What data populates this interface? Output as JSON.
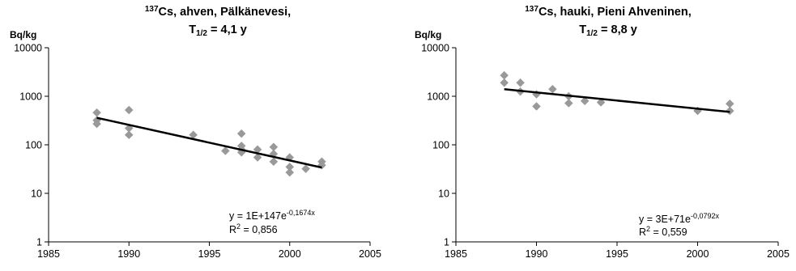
{
  "chart_data": [
    {
      "type": "scatter",
      "title_parts": {
        "sup": "137",
        "main": "Cs, ahven, Pälkänevesi,",
        "line2_pre": "T",
        "line2_sub": "1/2",
        "line2_post": " = 4,1 y"
      },
      "ylabel": "Bq/kg",
      "xlim": [
        1985,
        2005
      ],
      "ylim": [
        1,
        10000
      ],
      "y_scale": "log",
      "xticks": [
        "1985",
        "1990",
        "1995",
        "2000",
        "2005"
      ],
      "yticks": [
        "1",
        "10",
        "100",
        "1000",
        "10000"
      ],
      "marker_color": "#999999",
      "trend_color": "#000000",
      "series": [
        {
          "x": [
            1988,
            1988,
            1988,
            1990,
            1990,
            1990,
            1994,
            1996,
            1997,
            1997,
            1997,
            1997,
            1998,
            1998,
            1999,
            1999,
            1999,
            2000,
            2000,
            2000,
            2001,
            2002,
            2002
          ],
          "y": [
            460,
            320,
            270,
            520,
            220,
            160,
            160,
            75,
            170,
            95,
            80,
            70,
            80,
            55,
            90,
            65,
            45,
            55,
            35,
            27,
            32,
            45,
            38
          ]
        }
      ],
      "trend": {
        "x": [
          1988,
          2002
        ],
        "y": [
          360,
          34
        ]
      },
      "equation": {
        "main": "y = 1E+147e",
        "exp": "-0,1674x",
        "r2_pre": "R",
        "r2_sup": "2",
        "r2_post": " = 0,856"
      }
    },
    {
      "type": "scatter",
      "title_parts": {
        "sup": "137",
        "main": "Cs, hauki, Pieni Ahveninen,",
        "line2_pre": "T",
        "line2_sub": "1/2",
        "line2_post": " = 8,8 y"
      },
      "ylabel": "Bq/kg",
      "xlim": [
        1985,
        2005
      ],
      "ylim": [
        1,
        10000
      ],
      "y_scale": "log",
      "xticks": [
        "1985",
        "1990",
        "1995",
        "2000",
        "2005"
      ],
      "yticks": [
        "1",
        "10",
        "100",
        "1000",
        "10000"
      ],
      "marker_color": "#999999",
      "trend_color": "#000000",
      "series": [
        {
          "x": [
            1988,
            1988,
            1989,
            1989,
            1990,
            1990,
            1991,
            1992,
            1992,
            1993,
            1994,
            2000,
            2002,
            2002
          ],
          "y": [
            2700,
            1900,
            1900,
            1250,
            1100,
            620,
            1400,
            1000,
            720,
            800,
            750,
            500,
            700,
            500
          ]
        }
      ],
      "trend": {
        "x": [
          1988,
          2002
        ],
        "y": [
          1400,
          475
        ]
      },
      "equation": {
        "main": "y = 3E+71e",
        "exp": "-0,0792x",
        "r2_pre": "R",
        "r2_sup": "2",
        "r2_post": " = 0,559"
      }
    }
  ]
}
